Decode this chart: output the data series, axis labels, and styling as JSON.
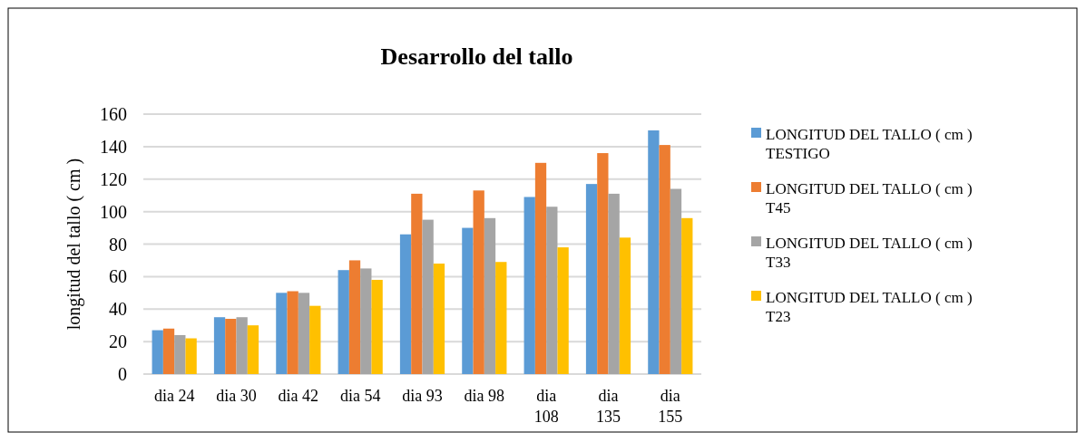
{
  "chart_data": {
    "type": "bar",
    "title": "Desarrollo del tallo",
    "ylabel": "longitud del tallo ( cm )",
    "categories": [
      "dia 24",
      "dia 30",
      "dia 42",
      "dia 54",
      "dia 93",
      "dia 98",
      "dia 108",
      "dia 135",
      "dia 155"
    ],
    "series": [
      {
        "name": "LONGITUD DEL TALLO ( cm ) TESTIGO",
        "color": "#5b9bd5",
        "values": [
          27,
          35,
          50,
          64,
          86,
          90,
          109,
          117,
          150
        ]
      },
      {
        "name": "LONGITUD DEL TALLO ( cm ) T45",
        "color": "#ed7d31",
        "values": [
          28,
          34,
          51,
          70,
          111,
          113,
          130,
          136,
          141
        ]
      },
      {
        "name": "LONGITUD DEL TALLO ( cm ) T33",
        "color": "#a5a5a5",
        "values": [
          24,
          35,
          50,
          65,
          95,
          96,
          103,
          111,
          114
        ]
      },
      {
        "name": "LONGITUD DEL TALLO ( cm ) T23",
        "color": "#ffc000",
        "values": [
          22,
          30,
          42,
          58,
          68,
          69,
          78,
          84,
          96
        ]
      }
    ],
    "ylim": [
      0,
      160
    ],
    "yticks": [
      0,
      20,
      40,
      60,
      80,
      100,
      120,
      140,
      160
    ],
    "grid": "y",
    "legend": "right"
  }
}
